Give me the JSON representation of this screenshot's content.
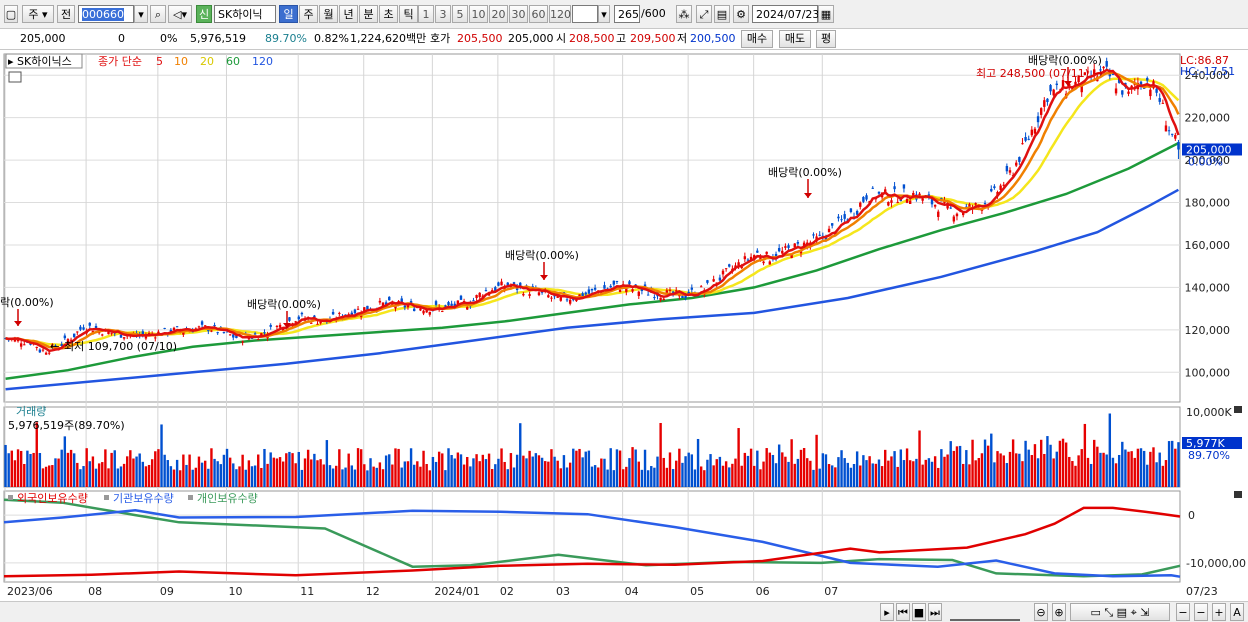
{
  "toolbar": {
    "period_label": "주",
    "prev_label": "전",
    "code": "000660",
    "shin_label": "신",
    "name": "SK하이닉스",
    "timeframes": [
      "일",
      "주",
      "월",
      "년",
      "분",
      "초",
      "틱"
    ],
    "active_timeframe": "일",
    "tick_numbers": [
      "1",
      "3",
      "5",
      "10",
      "20",
      "30",
      "60",
      "120"
    ],
    "count": "265",
    "count_total": "/600",
    "date": "2024/07/23"
  },
  "quote": {
    "price": "205,000",
    "change": "0",
    "change_pct": "0%",
    "volume": "5,976,519",
    "volume_ratio": "89.70%",
    "turnover_ratio": "0.82%",
    "amount": "1,224,620백만",
    "ask_label": "호가",
    "ask": "205,500",
    "bid": "205,000",
    "open_label": "시",
    "open": "208,500",
    "high_label": "고",
    "high": "209,500",
    "low_label": "저",
    "low": "200,500",
    "buy_label": "매수",
    "sell_label": "매도",
    "eval_label": "평"
  },
  "colors": {
    "up": "#e60000",
    "down": "#0050d0",
    "ma5": "#e01010",
    "ma10": "#f08000",
    "ma20": "#f5e61c",
    "ma60": "#1d9a3a",
    "ma120": "#2255e0",
    "foreign": "#e00000",
    "inst": "#2a5ee8",
    "indiv": "#3a9a5a"
  },
  "chart_data": {
    "type": "candlestick",
    "legend": {
      "name": "SK하이닉스",
      "series_label": "종가 단순",
      "periods": [
        "5",
        "10",
        "20",
        "60",
        "120"
      ]
    },
    "y_ticks": [
      100000,
      120000,
      140000,
      160000,
      180000,
      200000,
      220000,
      240000
    ],
    "y_tick_labels": [
      "100,000",
      "120,000",
      "140,000",
      "160,000",
      "180,000",
      "200,000",
      "220,000",
      "240,000"
    ],
    "ylim": [
      86000,
      250000
    ],
    "x_tick_labels": [
      "2023/06",
      "08",
      "09",
      "10",
      "11",
      "12",
      "2024/01",
      "02",
      "03",
      "04",
      "05",
      "06",
      "07"
    ],
    "x_end_label": "07/23",
    "current_price_label": "205,000",
    "current_change_label": "0.00%",
    "lc_label": "LC:86.87",
    "hc_label": "HC:-17.51",
    "annotations": {
      "high": "최고 248,500 (07/11)",
      "low": "최저 109,700 (07/10)",
      "dividends": [
        "락(0.00%)",
        "배당락(0.00%)",
        "배당락(0.00%)",
        "배당락(0.00%)",
        "배당락(0.00%)"
      ]
    },
    "ma_series": {
      "ma60": [
        [
          0,
          97000
        ],
        [
          20,
          101000
        ],
        [
          40,
          107000
        ],
        [
          60,
          112000
        ],
        [
          80,
          115000
        ],
        [
          100,
          117000
        ],
        [
          120,
          119000
        ],
        [
          140,
          121000
        ],
        [
          160,
          124000
        ],
        [
          180,
          128000
        ],
        [
          200,
          132000
        ],
        [
          220,
          135000
        ],
        [
          240,
          140000
        ],
        [
          260,
          148000
        ],
        [
          280,
          158000
        ],
        [
          300,
          167000
        ],
        [
          320,
          175000
        ],
        [
          340,
          184000
        ],
        [
          360,
          196000
        ],
        [
          376,
          208000
        ]
      ],
      "ma120": [
        [
          0,
          92000
        ],
        [
          30,
          96000
        ],
        [
          60,
          100000
        ],
        [
          90,
          104000
        ],
        [
          120,
          109000
        ],
        [
          150,
          115000
        ],
        [
          180,
          121000
        ],
        [
          210,
          125000
        ],
        [
          240,
          128000
        ],
        [
          270,
          135000
        ],
        [
          300,
          145000
        ],
        [
          330,
          157000
        ],
        [
          350,
          166000
        ],
        [
          366,
          178000
        ],
        [
          376,
          186000
        ]
      ]
    }
  },
  "volume_panel": {
    "title": "거래량",
    "value": "5,976,519주(89.70%)",
    "max_label": "10,000K",
    "current_label": "5,977K",
    "current_pct": "89.70%"
  },
  "holdings_panel": {
    "legend": [
      "외국인보유수량",
      "기관보유수량",
      "개인보유수량"
    ],
    "y_ticks_labels": [
      "0",
      "-10,000,00"
    ],
    "ylim": [
      -14000000,
      4000000
    ]
  }
}
